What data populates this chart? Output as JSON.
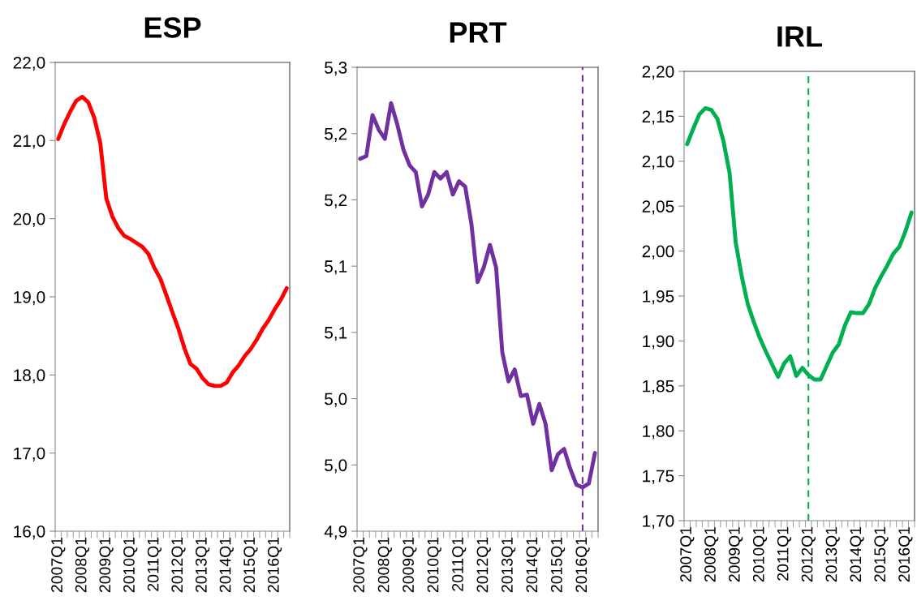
{
  "chart_data": [
    {
      "type": "line",
      "title": "ESP",
      "categories": [
        "2007Q1",
        null,
        null,
        null,
        "2008Q1",
        null,
        null,
        null,
        "2009Q1",
        null,
        null,
        null,
        "2010Q1",
        null,
        null,
        null,
        "2011Q1",
        null,
        null,
        null,
        "2012Q1",
        null,
        null,
        null,
        "2013Q1",
        null,
        null,
        null,
        "2014Q1",
        null,
        null,
        null,
        "2015Q1",
        null,
        null,
        null,
        "2016Q1",
        null,
        null
      ],
      "series": [
        {
          "color": "#ff0000",
          "values": [
            21.02,
            21.21,
            21.37,
            21.51,
            21.56,
            21.49,
            21.29,
            20.97,
            20.26,
            20.03,
            19.88,
            19.78,
            19.74,
            19.69,
            19.64,
            19.55,
            19.37,
            19.23,
            19.02,
            18.8,
            18.59,
            18.34,
            18.14,
            18.08,
            17.96,
            17.88,
            17.86,
            17.86,
            17.9,
            18.03,
            18.12,
            18.24,
            18.33,
            18.45,
            18.59,
            18.7,
            18.84,
            18.96,
            19.11
          ]
        }
      ],
      "ylim": [
        16,
        22
      ],
      "yticks": [
        {
          "value": 16,
          "label": "16,0"
        },
        {
          "value": 17,
          "label": "17,0"
        },
        {
          "value": 18,
          "label": "18,0"
        },
        {
          "value": 19,
          "label": "19,0"
        },
        {
          "value": 20,
          "label": "20,0"
        },
        {
          "value": 21,
          "label": "21,0"
        },
        {
          "value": 22,
          "label": "22,0"
        }
      ],
      "grid": false
    },
    {
      "type": "line",
      "title": "PRT",
      "categories": [
        "2007Q1",
        null,
        null,
        null,
        "2008Q1",
        null,
        null,
        null,
        "2009Q1",
        null,
        null,
        null,
        "2010Q1",
        null,
        null,
        null,
        "2011Q1",
        null,
        null,
        null,
        "2012Q1",
        null,
        null,
        null,
        "2013Q1",
        null,
        null,
        null,
        "2014Q1",
        null,
        null,
        null,
        "2015Q1",
        null,
        null,
        null,
        "2016Q1",
        null,
        null
      ],
      "series": [
        {
          "color": "#7030a0",
          "values": [
            5.181,
            5.183,
            5.214,
            5.203,
            5.196,
            5.223,
            5.207,
            5.188,
            5.176,
            5.171,
            5.145,
            5.154,
            5.171,
            5.166,
            5.171,
            5.154,
            5.164,
            5.16,
            5.132,
            5.088,
            5.099,
            5.116,
            5.099,
            5.035,
            5.013,
            5.022,
            5.002,
            5.003,
            4.981,
            4.996,
            4.981,
            4.946,
            4.958,
            4.962,
            4.947,
            4.935,
            4.933,
            4.936,
            4.959
          ]
        }
      ],
      "ylim": [
        4.9,
        5.25
      ],
      "yticks": [
        {
          "value": 4.9,
          "label": "4,9"
        },
        {
          "value": 4.95,
          "label": "5,0"
        },
        {
          "value": 5.0,
          "label": "5,0"
        },
        {
          "value": 5.05,
          "label": "5,1"
        },
        {
          "value": 5.1,
          "label": "5,1"
        },
        {
          "value": 5.15,
          "label": "5,2"
        },
        {
          "value": 5.2,
          "label": "5,2"
        },
        {
          "value": 5.25,
          "label": "5,3"
        }
      ],
      "ref_lines": [
        {
          "axis": "x",
          "value": "2016Q1",
          "color": "#7030a0",
          "line_style": "dashed"
        }
      ],
      "grid": false
    },
    {
      "type": "line",
      "title": "IRL",
      "categories": [
        "2007Q1",
        null,
        null,
        null,
        "2008Q1",
        null,
        null,
        null,
        "2009Q1",
        null,
        null,
        null,
        "2010Q1",
        null,
        null,
        null,
        "2011Q1",
        null,
        null,
        null,
        "2012Q1",
        null,
        null,
        null,
        "2013Q1",
        null,
        null,
        null,
        "2014Q1",
        null,
        null,
        null,
        "2015Q1",
        null,
        null,
        null,
        "2016Q1",
        null
      ],
      "series": [
        {
          "color": "#00b050",
          "values": [
            2.119,
            2.136,
            2.152,
            2.159,
            2.157,
            2.147,
            2.122,
            2.087,
            2.01,
            1.972,
            1.941,
            1.921,
            1.903,
            1.888,
            1.874,
            1.86,
            1.875,
            1.883,
            1.861,
            1.87,
            1.862,
            1.857,
            1.857,
            1.872,
            1.887,
            1.896,
            1.917,
            1.932,
            1.931,
            1.931,
            1.941,
            1.959,
            1.972,
            1.984,
            1.997,
            2.005,
            2.022,
            2.043
          ]
        }
      ],
      "ylim": [
        1.7,
        2.2
      ],
      "yticks": [
        {
          "value": 1.7,
          "label": "1,70"
        },
        {
          "value": 1.75,
          "label": "1,75"
        },
        {
          "value": 1.8,
          "label": "1,80"
        },
        {
          "value": 1.85,
          "label": "1,85"
        },
        {
          "value": 1.9,
          "label": "1,90"
        },
        {
          "value": 1.95,
          "label": "1,95"
        },
        {
          "value": 2.0,
          "label": "2,00"
        },
        {
          "value": 2.05,
          "label": "2,05"
        },
        {
          "value": 2.1,
          "label": "2,10"
        },
        {
          "value": 2.15,
          "label": "2,15"
        },
        {
          "value": 2.2,
          "label": "2,20"
        }
      ],
      "ref_lines": [
        {
          "axis": "x",
          "value": "2012Q1",
          "color": "#00b050",
          "line_style": "dashed"
        }
      ],
      "grid": false
    }
  ]
}
